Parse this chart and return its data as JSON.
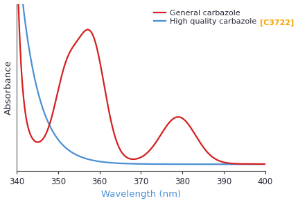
{
  "xlabel": "Wavelength (nm)",
  "ylabel": "Absorbance",
  "xmin": 340,
  "xmax": 400,
  "xticks": [
    340,
    350,
    360,
    370,
    380,
    390,
    400
  ],
  "red_color": "#d42020",
  "blue_color": "#4a8fd4",
  "orange_color": "#f5a500",
  "dark_text": "#2a2a3a",
  "legend_label_red": "General carbazole",
  "legend_label_blue": "High quality carbazole ",
  "legend_label_orange": "[C3722]",
  "xlabel_color": "#4a8fd4",
  "background_color": "#ffffff"
}
